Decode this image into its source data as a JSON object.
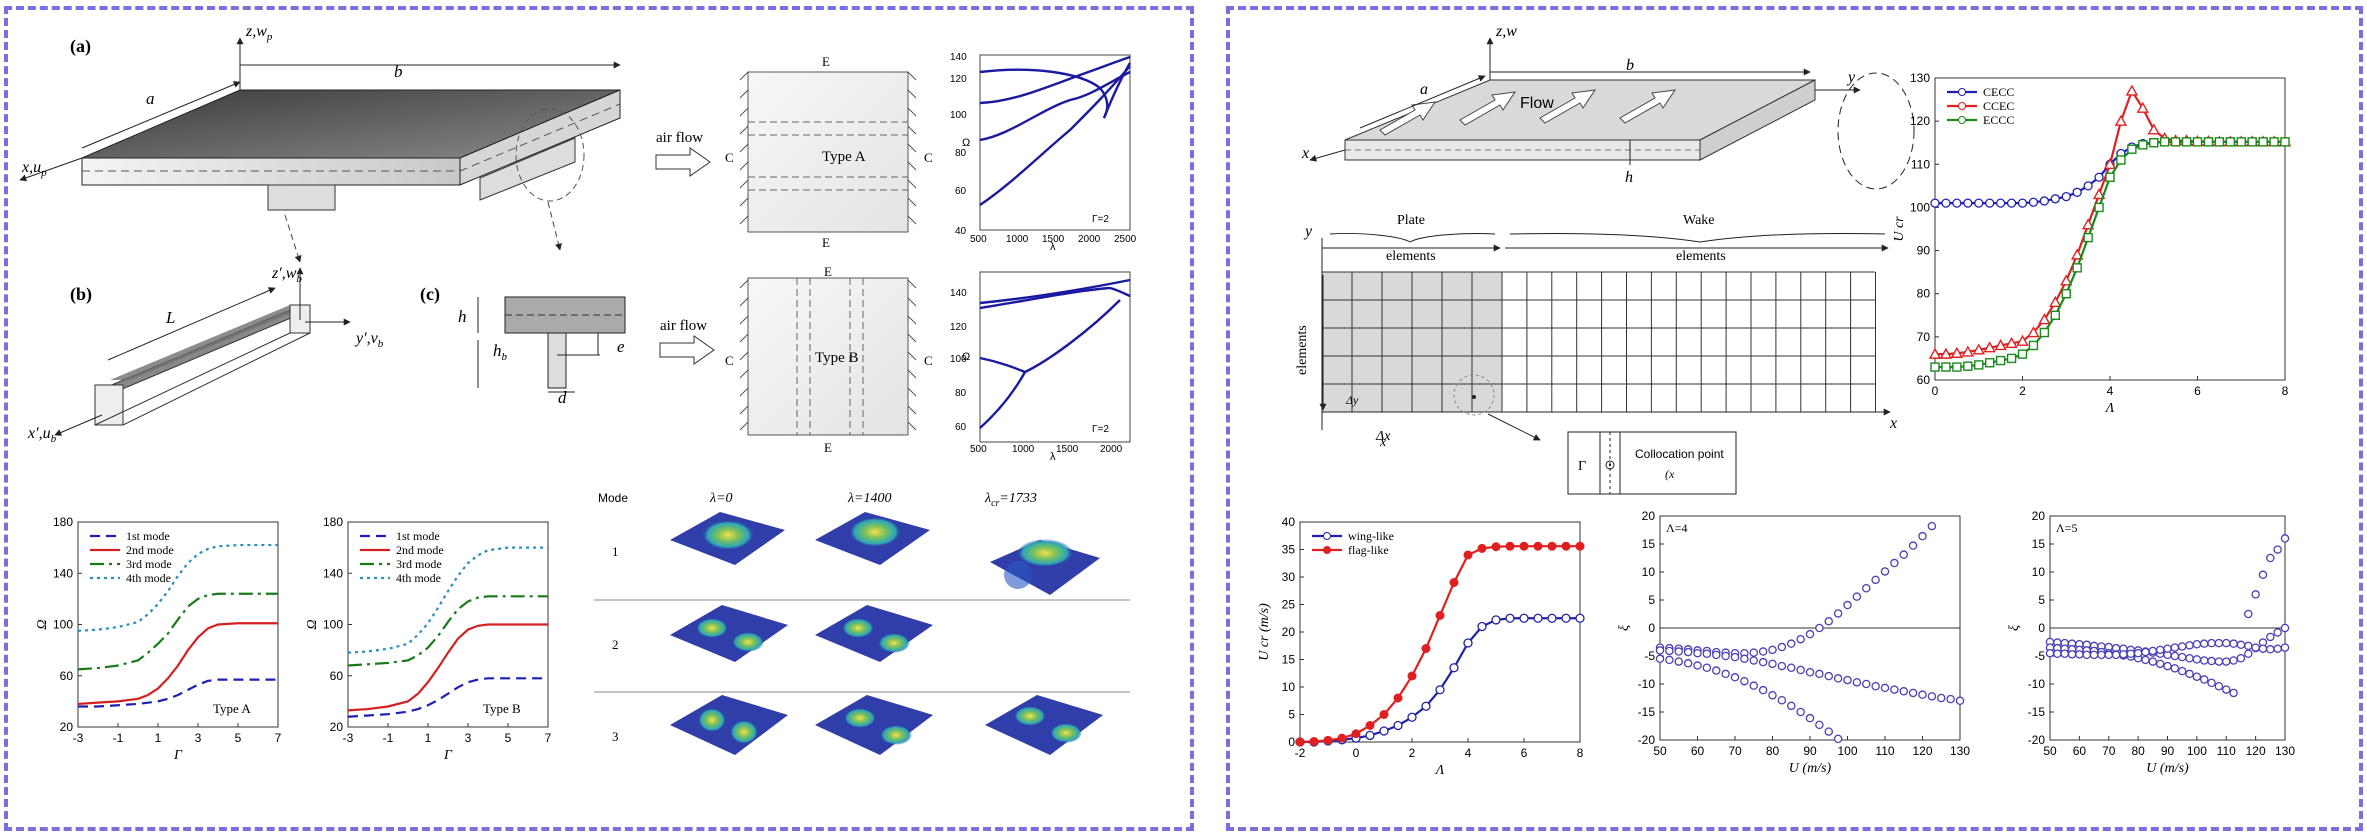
{
  "left": {
    "labels": {
      "a": "(a)",
      "b": "(b)",
      "c": "(c)"
    },
    "plate_dims": {
      "a": "a",
      "b": "b",
      "z": "z,w",
      "z_sub": "p",
      "x": "x,u",
      "x_sub": "p"
    },
    "beam": {
      "L": "L",
      "z": "z′,w",
      "z_sub": "b",
      "y": "y′,v",
      "y_sub": "b",
      "x": "x′,u",
      "x_sub": "b"
    },
    "section": {
      "h": "h",
      "hb": "h",
      "hb_sub": "b",
      "e": "e",
      "d": "d"
    },
    "airflow": "air flow",
    "typeA": {
      "name": "Type A",
      "edge_top": "E",
      "edge_bottom": "E",
      "edge_left": "C",
      "edge_right": "C"
    },
    "typeB": {
      "name": "Type B",
      "edge_top": "E",
      "edge_bottom": "E",
      "edge_left": "C",
      "edge_right": "C"
    },
    "mini_a": {
      "ylabel": "Ω",
      "xlabel": "λ",
      "note": "Γ=2",
      "yticks": [
        "40",
        "60",
        "80",
        "100",
        "120",
        "140"
      ],
      "xticks": [
        "500",
        "1000",
        "1500",
        "2000",
        "2500"
      ]
    },
    "mini_b": {
      "ylabel": "Ω",
      "xlabel": "λ",
      "note": "Γ=2",
      "yticks": [
        "60",
        "80",
        "100",
        "120",
        "140"
      ],
      "xticks": [
        "500",
        "1000",
        "1500",
        "2000"
      ]
    },
    "modes_header": {
      "mode": "Mode",
      "l0": "λ=0",
      "l1": "λ=1400",
      "l2": "λ",
      "l2_sub": "cr",
      "l2_val": "=1733"
    },
    "modes_rows": [
      "1",
      "2",
      "3"
    ]
  },
  "right": {
    "plate": {
      "z": "z,w",
      "a": "a",
      "b": "b",
      "y": "y",
      "x": "x",
      "h": "h",
      "flow": "Flow"
    },
    "grid": {
      "y": "y",
      "x": "x",
      "plate": "Plate",
      "wake": "Wake",
      "plate_elements": "elements",
      "wake_elements": "elements",
      "m_elements": "elements",
      "collocation": "Collocation point",
      "collocation_coords": "(x",
      "gamma": "Γ",
      "dx": "Δx",
      "dy": "Δy"
    }
  },
  "chart_data": [
    {
      "type": "line",
      "id": "chart-type-a",
      "note": "Type A",
      "xlabel": "Γ",
      "ylabel": "Ω",
      "xlim": [
        -3,
        7
      ],
      "ylim": [
        20,
        180
      ],
      "xticks": [
        -3,
        -1,
        1,
        3,
        5,
        7
      ],
      "yticks": [
        20,
        60,
        100,
        140,
        180
      ],
      "legend": "top-left",
      "x": [
        -3,
        -2,
        -1,
        0,
        0.5,
        1,
        1.5,
        2,
        2.5,
        3,
        3.5,
        4,
        5,
        6,
        7
      ],
      "series": [
        {
          "name": "1st mode",
          "color": "#1f1fb4",
          "dash": "10,6",
          "values": [
            36,
            36,
            37,
            38,
            39,
            40,
            42,
            45,
            49,
            53,
            56,
            57,
            57,
            57,
            57
          ]
        },
        {
          "name": "2nd mode",
          "color": "#d42020",
          "dash": "",
          "values": [
            38,
            39,
            40,
            42,
            45,
            50,
            58,
            68,
            80,
            90,
            97,
            100,
            101,
            101,
            101
          ]
        },
        {
          "name": "3rd mode",
          "color": "#1a7a1a",
          "dash": "14,5,3,5",
          "values": [
            65,
            66,
            68,
            72,
            78,
            85,
            93,
            104,
            114,
            120,
            123,
            124,
            124,
            124,
            124
          ]
        },
        {
          "name": "4th mode",
          "color": "#2a8fb8",
          "dash": "3,4",
          "values": [
            95,
            96,
            98,
            102,
            108,
            116,
            126,
            138,
            148,
            155,
            159,
            161,
            162,
            162,
            162
          ]
        }
      ]
    },
    {
      "type": "line",
      "id": "chart-type-b",
      "note": "Type B",
      "xlabel": "Γ",
      "ylabel": "Ω",
      "xlim": [
        -3,
        7
      ],
      "ylim": [
        20,
        180
      ],
      "xticks": [
        -3,
        -1,
        1,
        3,
        5,
        7
      ],
      "yticks": [
        20,
        60,
        100,
        140,
        180
      ],
      "legend": "top-left",
      "x": [
        -3,
        -2,
        -1,
        0,
        0.5,
        1,
        1.5,
        2,
        2.5,
        3,
        3.5,
        4,
        5,
        6,
        7
      ],
      "series": [
        {
          "name": "1st mode",
          "color": "#1f1fb4",
          "dash": "10,6",
          "values": [
            28,
            29,
            30,
            32,
            34,
            37,
            41,
            46,
            51,
            55,
            57,
            58,
            58,
            58,
            58
          ]
        },
        {
          "name": "2nd mode",
          "color": "#d42020",
          "dash": "",
          "values": [
            33,
            34,
            36,
            40,
            46,
            55,
            66,
            78,
            89,
            96,
            99,
            100,
            100,
            100,
            100
          ]
        },
        {
          "name": "3rd mode",
          "color": "#1a7a1a",
          "dash": "14,5,3,5",
          "values": [
            68,
            69,
            70,
            72,
            76,
            82,
            91,
            102,
            112,
            118,
            121,
            122,
            122,
            122,
            122
          ]
        },
        {
          "name": "4th mode",
          "color": "#2a8fb8",
          "dash": "3,4",
          "values": [
            78,
            79,
            81,
            85,
            92,
            101,
            113,
            126,
            138,
            148,
            154,
            158,
            160,
            160,
            160
          ]
        }
      ]
    },
    {
      "type": "line",
      "id": "chart-ucr-lambda",
      "xlabel": "Λ",
      "ylabel": "U",
      "ylabel_sub": "cr",
      "xlim": [
        0,
        8
      ],
      "ylim": [
        60,
        130
      ],
      "xticks": [
        0,
        2,
        4,
        6,
        8
      ],
      "yticks": [
        60,
        70,
        80,
        90,
        100,
        110,
        120,
        130
      ],
      "legend": "top-left",
      "x": [
        0,
        0.25,
        0.5,
        0.75,
        1,
        1.25,
        1.5,
        1.75,
        2,
        2.25,
        2.5,
        2.75,
        3,
        3.25,
        3.5,
        3.75,
        4,
        4.25,
        4.5,
        4.75,
        5,
        5.25,
        5.5,
        5.75,
        6,
        6.25,
        6.5,
        6.75,
        7,
        7.25,
        7.5,
        7.75,
        8
      ],
      "series": [
        {
          "name": "CECC",
          "color": "#1f1fb4",
          "marker": "circle",
          "values": [
            101,
            101,
            101,
            101,
            101,
            101,
            101,
            101,
            101,
            101.2,
            101.5,
            102,
            102.5,
            103.5,
            105,
            107,
            110,
            112.5,
            114,
            114.8,
            115,
            115.2,
            115.2,
            115.2,
            115.2,
            115.2,
            115.2,
            115.2,
            115.2,
            115.2,
            115.2,
            115.2,
            115.2
          ]
        },
        {
          "name": "CCEC",
          "color": "#e02020",
          "marker": "triangle",
          "values": [
            66,
            66,
            66.2,
            66.5,
            67,
            67.5,
            68,
            68.5,
            69,
            71,
            74,
            78,
            83,
            89,
            96,
            103,
            110,
            120,
            127,
            123,
            118,
            116,
            115.5,
            115.5,
            115.3,
            115.3,
            115.2,
            115.2,
            115.2,
            115.2,
            115.2,
            115.2,
            115.2
          ]
        },
        {
          "name": "ECCC",
          "color": "#1a8a1a",
          "marker": "square",
          "values": [
            63,
            63,
            63,
            63.2,
            63.5,
            64,
            64.5,
            65,
            66,
            68,
            71,
            75,
            80,
            86,
            93,
            100,
            107,
            111,
            113.5,
            114.5,
            115,
            115.2,
            115.2,
            115.2,
            115.2,
            115.2,
            115.2,
            115.2,
            115.2,
            115.2,
            115.2,
            115.2,
            115.2
          ]
        }
      ]
    },
    {
      "type": "line",
      "id": "chart-ucr-wing-flag",
      "xlabel": "Λ",
      "ylabel": "U",
      "ylabel_sub": "cr",
      "ylabel_unit": " (m/s)",
      "xlim": [
        -2,
        8
      ],
      "ylim": [
        0,
        40
      ],
      "xticks": [
        -2,
        0,
        2,
        4,
        6,
        8
      ],
      "yticks": [
        0,
        5,
        10,
        15,
        20,
        25,
        30,
        35,
        40
      ],
      "legend": "top-left",
      "x": [
        -2,
        -1.5,
        -1,
        -0.5,
        0,
        0.5,
        1,
        1.5,
        2,
        2.5,
        3,
        3.5,
        4,
        4.5,
        5,
        5.5,
        6,
        6.5,
        7,
        7.5,
        8
      ],
      "series": [
        {
          "name": "wing-like",
          "color": "#2020a8",
          "marker": "circle-open",
          "values": [
            0,
            0,
            0.2,
            0.4,
            0.7,
            1.2,
            2,
            3,
            4.5,
            6.5,
            9.5,
            13.5,
            18,
            21,
            22.2,
            22.5,
            22.5,
            22.5,
            22.5,
            22.5,
            22.5
          ]
        },
        {
          "name": "flag-like",
          "color": "#e02020",
          "marker": "circle-filled",
          "values": [
            0,
            0.1,
            0.3,
            0.7,
            1.5,
            3,
            5,
            8,
            12,
            17,
            23,
            29,
            34,
            35.2,
            35.5,
            35.6,
            35.6,
            35.6,
            35.6,
            35.6,
            35.6
          ]
        }
      ]
    },
    {
      "type": "scatter",
      "id": "chart-xi-lambda4",
      "annotation": "Λ=4",
      "xlabel": "U (m/s)",
      "ylabel": "ξ",
      "xlim": [
        50,
        130
      ],
      "ylim": [
        -20,
        20
      ],
      "xticks": [
        50,
        60,
        70,
        80,
        90,
        100,
        110,
        120,
        130
      ],
      "yticks": [
        -20,
        -15,
        -10,
        -5,
        0,
        5,
        10,
        15,
        20
      ],
      "x": [
        50,
        52.5,
        55,
        57.5,
        60,
        62.5,
        65,
        67.5,
        70,
        72.5,
        75,
        77.5,
        80,
        82.5,
        85,
        87.5,
        90,
        92.5,
        95,
        97.5,
        100,
        102.5,
        105,
        107.5,
        110,
        112.5,
        115,
        117.5,
        120,
        122.5,
        125,
        127.5,
        130
      ],
      "series": [
        {
          "name": "",
          "color": "#4a3fb8",
          "values": [
            -3.5,
            -3.6,
            -3.7,
            -3.8,
            -4,
            -4.1,
            -4.3,
            -4.4,
            -4.5,
            -4.5,
            -4.4,
            -4.2,
            -3.9,
            -3.4,
            -2.8,
            -2,
            -1.1,
            0,
            1.2,
            2.6,
            4.1,
            5.6,
            7.1,
            8.6,
            10.1,
            11.6,
            13.1,
            14.7,
            16.4,
            18.2,
            null,
            null,
            null
          ]
        },
        {
          "name": "",
          "color": "#4a3fb8",
          "values": [
            -4,
            -4.1,
            -4.2,
            -4.3,
            -4.5,
            -4.6,
            -4.8,
            -5,
            -5.2,
            -5.5,
            -5.8,
            -6.1,
            -6.4,
            -6.8,
            -7.1,
            -7.5,
            -7.9,
            -8.2,
            -8.6,
            -9,
            -9.3,
            -9.7,
            -10,
            -10.4,
            -10.7,
            -11,
            -11.3,
            -11.6,
            -11.9,
            -12.2,
            -12.5,
            -12.7,
            -13
          ]
        },
        {
          "name": "",
          "color": "#4a3fb8",
          "values": [
            -5.5,
            -5.7,
            -6,
            -6.3,
            -6.7,
            -7.1,
            -7.6,
            -8.2,
            -8.8,
            -9.5,
            -10.3,
            -11.1,
            -12,
            -12.9,
            -13.9,
            -15,
            -16.1,
            -17.3,
            -18.5,
            -19.8,
            null,
            null,
            null,
            null,
            null,
            null,
            null,
            null,
            null,
            null,
            null,
            null,
            null
          ]
        }
      ]
    },
    {
      "type": "scatter",
      "id": "chart-xi-lambda5",
      "annotation": "Λ=5",
      "xlabel": "U (m/s)",
      "ylabel": "ξ",
      "xlim": [
        50,
        130
      ],
      "ylim": [
        -20,
        20
      ],
      "xticks": [
        50,
        60,
        70,
        80,
        90,
        100,
        110,
        120,
        130
      ],
      "yticks": [
        -20,
        -15,
        -10,
        -5,
        0,
        5,
        10,
        15,
        20
      ],
      "x": [
        50,
        52.5,
        55,
        57.5,
        60,
        62.5,
        65,
        67.5,
        70,
        72.5,
        75,
        77.5,
        80,
        82.5,
        85,
        87.5,
        90,
        92.5,
        95,
        97.5,
        100,
        102.5,
        105,
        107.5,
        110,
        112.5,
        115,
        117.5,
        120,
        122.5,
        125,
        127.5,
        130
      ],
      "series": [
        {
          "name": "",
          "color": "#4a3fb8",
          "values": [
            -2.5,
            -2.6,
            -2.7,
            -2.8,
            -2.9,
            -3,
            -3.2,
            -3.3,
            -3.4,
            -3.6,
            -3.7,
            -3.9,
            -4,
            -4.2,
            -4.4,
            -4.6,
            -4.8,
            -5,
            -5.2,
            -5.4,
            -5.6,
            -5.8,
            -5.9,
            -6,
            -6,
            -5.8,
            -5.4,
            -4.6,
            -3.6,
            -2.6,
            -1.6,
            -0.8,
            0
          ]
        },
        {
          "name": "",
          "color": "#4a3fb8",
          "values": [
            -3.5,
            -3.6,
            -3.7,
            -3.8,
            -3.9,
            -4,
            -4.1,
            -4.3,
            -4.5,
            -4.7,
            -4.9,
            -5.1,
            -5.4,
            -5.7,
            -6,
            -6.4,
            -6.8,
            -7.2,
            -7.7,
            -8.2,
            -8.7,
            -9.2,
            -9.8,
            -10.4,
            -11,
            -11.6,
            null,
            null,
            null,
            null,
            null,
            null,
            null
          ]
        },
        {
          "name": "",
          "color": "#4a3fb8",
          "values": [
            -4.5,
            -4.6,
            -4.6,
            -4.7,
            -4.7,
            -4.8,
            -4.8,
            -4.8,
            -4.8,
            -4.8,
            -4.7,
            -4.6,
            -4.5,
            -4.3,
            -4.1,
            -3.9,
            -3.7,
            -3.5,
            -3.3,
            -3.1,
            -2.9,
            -2.8,
            -2.7,
            -2.7,
            -2.7,
            -2.8,
            -3,
            -3.2,
            -3.5,
            -3.7,
            -3.8,
            -3.7,
            -3.5
          ]
        },
        {
          "name": "",
          "color": "#4a3fb8",
          "values": [
            null,
            null,
            null,
            null,
            null,
            null,
            null,
            null,
            null,
            null,
            null,
            null,
            null,
            null,
            null,
            null,
            null,
            null,
            null,
            null,
            null,
            null,
            null,
            null,
            null,
            null,
            null,
            2.5,
            6,
            9.5,
            12.5,
            14,
            16
          ]
        }
      ]
    }
  ]
}
